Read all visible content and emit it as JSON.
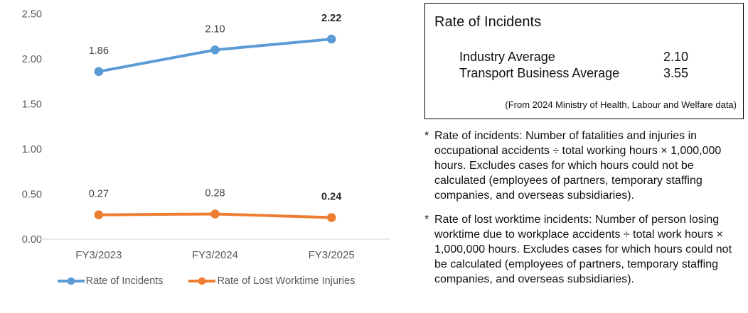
{
  "chart_data": {
    "type": "line",
    "categories": [
      "FY3/2023",
      "FY3/2024",
      "FY3/2025"
    ],
    "series": [
      {
        "name": "Rate of Incidents",
        "values": [
          1.86,
          2.1,
          2.22
        ],
        "color": "#5B9BD5"
      },
      {
        "name": "Rate of Lost Worktime Injuries",
        "values": [
          0.27,
          0.28,
          0.24
        ],
        "color": "#ED7D31"
      }
    ],
    "title": "",
    "xlabel": "",
    "ylabel": "",
    "ylim": [
      0,
      2.5
    ],
    "ytick_step": 0.5,
    "ytick_labels": [
      "0.00",
      "0.50",
      "1.00",
      "1.50",
      "2.00",
      "2.50"
    ],
    "grid": false,
    "data_labels": true,
    "last_point_label_bold": true,
    "legend_position": "bottom"
  },
  "colors": {
    "axis_line": "#D9D9D9",
    "tick_label": "#595959",
    "x_label": "#595959",
    "data_label": "#404040",
    "data_label_bold": "#262626",
    "legend_text": "#595959",
    "box_border": "#000000"
  },
  "info_box": {
    "title": "Rate of Incidents",
    "rows": [
      {
        "label": "Industry Average",
        "value": "2.10"
      },
      {
        "label": "Transport Business Average",
        "value": "3.55"
      }
    ],
    "source": "(From 2024 Ministry of Health, Labour and Welfare data)"
  },
  "footnotes": [
    {
      "marker": "*",
      "text": "Rate of incidents: Number of fatalities and injuries in occupational accidents ÷ total working hours × 1,000,000 hours. Excludes cases for which hours could not be calculated (employees of partners, temporary staffing companies, and overseas subsidiaries)."
    },
    {
      "marker": "*",
      "text": "Rate of lost worktime incidents: Number of person losing worktime due to workplace accidents ÷ total work hours × 1,000,000 hours. Excludes cases for which hours could not be calculated (employees of partners, temporary staffing companies, and overseas subsidiaries)."
    }
  ]
}
